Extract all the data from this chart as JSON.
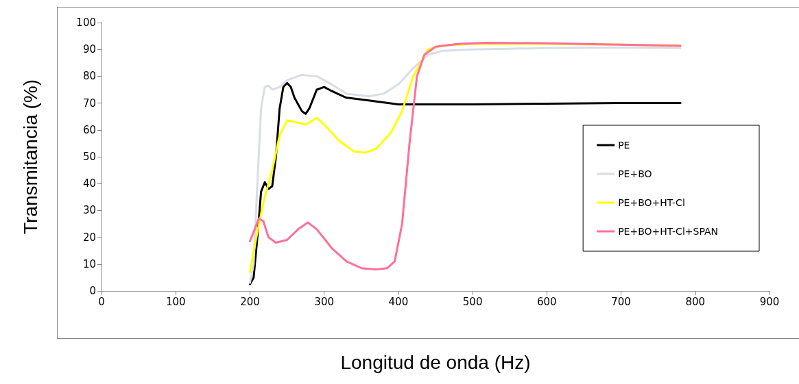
{
  "chart_data": {
    "type": "line",
    "xlabel": "Longitud de onda (Hz)",
    "ylabel": "Transmitancia (%)",
    "xlim": [
      0,
      900
    ],
    "xticks": [
      0,
      100,
      200,
      300,
      400,
      500,
      600,
      700,
      800,
      900
    ],
    "ylim": [
      0,
      100
    ],
    "yticks": [
      0,
      10,
      20,
      30,
      40,
      50,
      60,
      70,
      80,
      90,
      100
    ],
    "grid": false,
    "legend": "right",
    "marker": "none",
    "line_style": "solid",
    "series": [
      {
        "name": "PE",
        "color": "#000000",
        "x": [
          200,
          205,
          210,
          215,
          220,
          225,
          230,
          235,
          240,
          245,
          250,
          255,
          260,
          270,
          275,
          280,
          290,
          300,
          310,
          330,
          360,
          400,
          450,
          500,
          600,
          700,
          780
        ],
        "values": [
          2.5,
          5,
          20,
          37,
          40.5,
          38,
          39,
          50,
          68,
          76,
          77.5,
          76,
          72,
          67,
          66,
          68,
          75,
          76,
          74.5,
          72,
          71,
          69.5,
          69.5,
          69.5,
          69.8,
          70,
          70
        ]
      },
      {
        "name": "PE+BO",
        "color": "#d9dde6",
        "x": [
          200,
          205,
          210,
          215,
          220,
          225,
          230,
          240,
          250,
          270,
          290,
          310,
          330,
          360,
          380,
          400,
          420,
          440,
          460,
          500,
          600,
          700,
          780
        ],
        "values": [
          3,
          10,
          40,
          68,
          76,
          76.5,
          75,
          76,
          78.5,
          80.5,
          80,
          77,
          73.5,
          72.5,
          73.5,
          77,
          83,
          88,
          89.5,
          90,
          90.5,
          90.7,
          90.5
        ]
      },
      {
        "name": "PE+BO+HT-Cl",
        "color": "#ffff00",
        "x": [
          200,
          210,
          220,
          230,
          240,
          250,
          260,
          275,
          290,
          300,
          320,
          340,
          355,
          370,
          390,
          405,
          420,
          440,
          460,
          500,
          600,
          700,
          780
        ],
        "values": [
          7,
          22,
          35,
          45,
          58,
          63.5,
          63,
          62,
          64.5,
          62,
          56,
          52,
          51.5,
          53,
          59,
          67,
          80,
          90,
          91.5,
          92,
          92,
          91.8,
          91.5
        ]
      },
      {
        "name": "PE+BO+HT-Cl+SPAN",
        "color": "#ff6f9a",
        "x": [
          200,
          205,
          212,
          218,
          225,
          235,
          250,
          265,
          278,
          290,
          310,
          330,
          350,
          370,
          385,
          395,
          405,
          415,
          425,
          435,
          450,
          480,
          520,
          600,
          700,
          780
        ],
        "values": [
          18.5,
          22,
          27,
          26,
          20,
          18,
          19,
          23,
          25.5,
          23,
          16,
          11,
          8.5,
          8,
          8.5,
          11,
          25,
          55,
          80,
          88,
          91,
          92,
          92.5,
          92.3,
          91.8,
          91.3
        ]
      }
    ]
  }
}
